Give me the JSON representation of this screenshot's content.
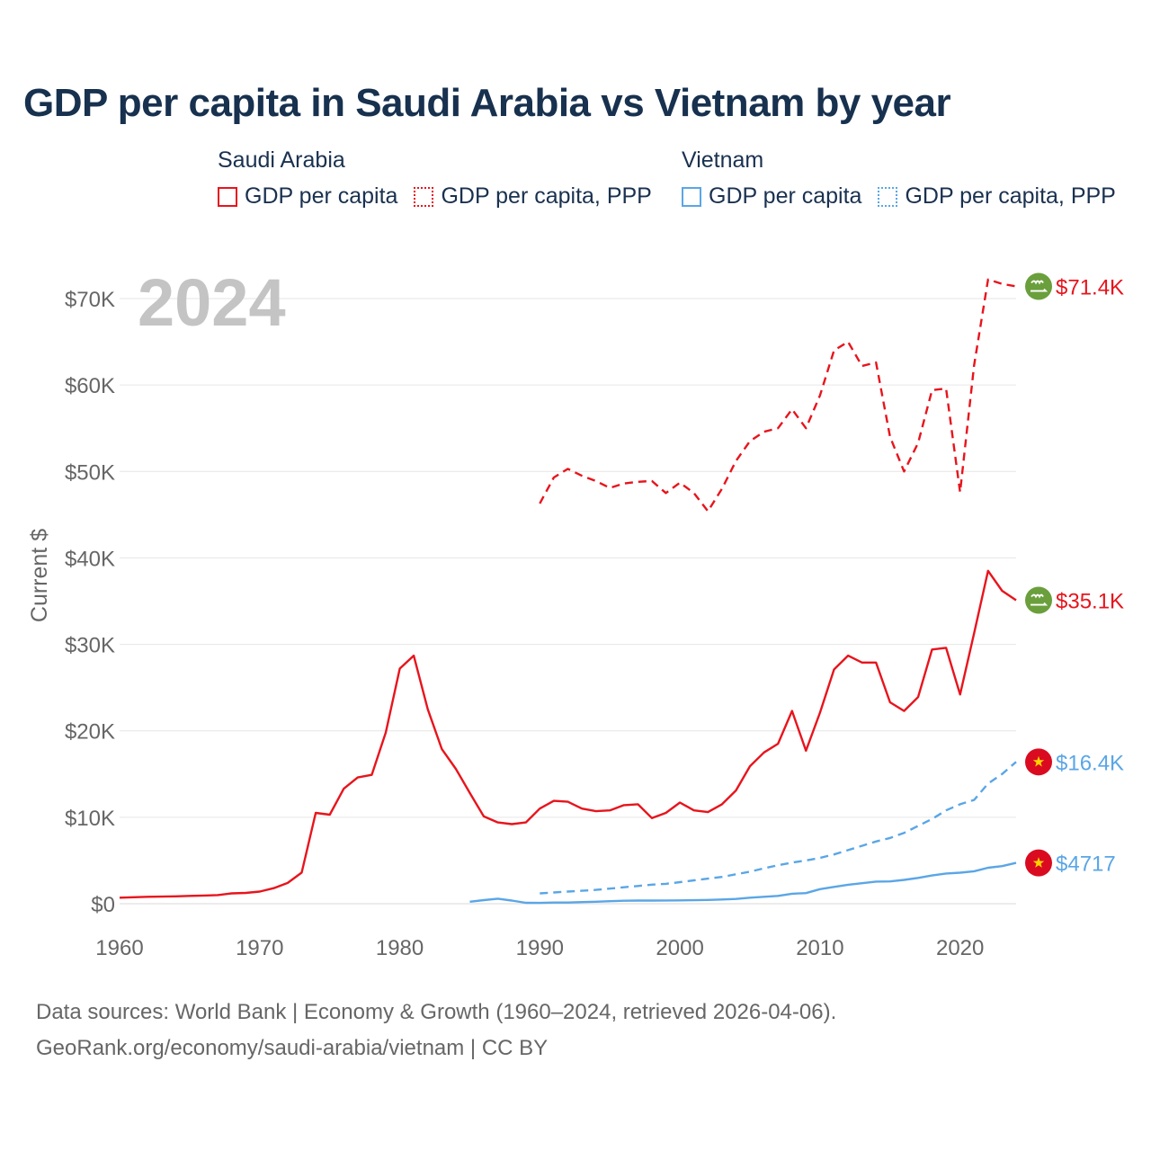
{
  "title": "GDP per capita in Saudi Arabia vs Vietnam by year",
  "legend": {
    "groups": [
      {
        "name": "Saudi Arabia",
        "items": [
          {
            "label": "GDP per capita",
            "style": "solid",
            "color": "#e8141c"
          },
          {
            "label": "GDP per capita, PPP",
            "style": "dotted",
            "color": "#e8141c"
          }
        ]
      },
      {
        "name": "Vietnam",
        "items": [
          {
            "label": "GDP per capita",
            "style": "solid",
            "color": "#5aa6e6"
          },
          {
            "label": "GDP per capita, PPP",
            "style": "dotted",
            "color": "#5aa6e6"
          }
        ]
      }
    ]
  },
  "year_label": "2024",
  "footer": {
    "line1": "Data sources: World Bank | Economy & Growth (1960–2024, retrieved 2026-04-06).",
    "line2": "GeoRank.org/economy/saudi-arabia/vietnam | CC BY"
  },
  "icons": {
    "saudi": "saudi-arabia-flag-icon",
    "vietnam": "vietnam-flag-icon"
  },
  "colors": {
    "saudi": "#e8141c",
    "vietnam": "#5aa6e6",
    "saudi_flag": "#6a9f3c",
    "vietnam_flag": "#da0b20",
    "vietnam_star": "#ffd400"
  },
  "chart_data": {
    "type": "line",
    "title": "GDP per capita in Saudi Arabia vs Vietnam by year",
    "xlabel": "",
    "ylabel": "Current $",
    "xlim": [
      1960,
      2024
    ],
    "ylim": [
      0,
      70000
    ],
    "x_ticks": [
      "1960",
      "1970",
      "1980",
      "1990",
      "2000",
      "2010",
      "2020"
    ],
    "y_ticks": [
      {
        "value": 0,
        "label": "$0"
      },
      {
        "value": 10000,
        "label": "$10K"
      },
      {
        "value": 20000,
        "label": "$20K"
      },
      {
        "value": 30000,
        "label": "$30K"
      },
      {
        "value": 40000,
        "label": "$40K"
      },
      {
        "value": 50000,
        "label": "$50K"
      },
      {
        "value": 60000,
        "label": "$60K"
      },
      {
        "value": 70000,
        "label": "$70K"
      }
    ],
    "series": [
      {
        "name": "Saudi Arabia GDP per capita, PPP",
        "style": "dashed",
        "color": "#e8141c",
        "end_label": "$71.4K",
        "flag": "saudi",
        "x": [
          1990,
          1991,
          1992,
          1993,
          1994,
          1995,
          1996,
          1997,
          1998,
          1999,
          2000,
          2001,
          2002,
          2003,
          2004,
          2005,
          2006,
          2007,
          2008,
          2009,
          2010,
          2011,
          2012,
          2013,
          2014,
          2015,
          2016,
          2017,
          2018,
          2019,
          2020,
          2021,
          2022,
          2023,
          2024
        ],
        "values": [
          46300,
          49300,
          50300,
          49500,
          48900,
          48100,
          48600,
          48800,
          48900,
          47500,
          48700,
          47500,
          45400,
          48000,
          51200,
          53500,
          54600,
          55000,
          57200,
          55000,
          58800,
          64000,
          65000,
          62200,
          62600,
          54000,
          50000,
          53300,
          59400,
          59600,
          47600,
          62300,
          72200,
          71700,
          71400
        ]
      },
      {
        "name": "Saudi Arabia GDP per capita",
        "style": "solid",
        "color": "#e8141c",
        "end_label": "$35.1K",
        "flag": "saudi",
        "x": [
          1960,
          1961,
          1962,
          1963,
          1964,
          1965,
          1966,
          1967,
          1968,
          1969,
          1970,
          1971,
          1972,
          1973,
          1974,
          1975,
          1976,
          1977,
          1978,
          1979,
          1980,
          1981,
          1982,
          1983,
          1984,
          1985,
          1986,
          1987,
          1988,
          1989,
          1990,
          1991,
          1992,
          1993,
          1994,
          1995,
          1996,
          1997,
          1998,
          1999,
          2000,
          2001,
          2002,
          2003,
          2004,
          2005,
          2006,
          2007,
          2008,
          2009,
          2010,
          2011,
          2012,
          2013,
          2014,
          2015,
          2016,
          2017,
          2018,
          2019,
          2020,
          2021,
          2022,
          2023,
          2024
        ],
        "values": [
          700,
          750,
          800,
          820,
          850,
          900,
          950,
          1000,
          1200,
          1250,
          1400,
          1800,
          2400,
          3600,
          10500,
          10300,
          13300,
          14600,
          14900,
          19800,
          27200,
          28700,
          22500,
          17900,
          15600,
          12800,
          10100,
          9400,
          9200,
          9400,
          11000,
          11900,
          11800,
          11000,
          10700,
          10800,
          11400,
          11500,
          9900,
          10500,
          11700,
          10800,
          10600,
          11500,
          13100,
          15900,
          17500,
          18500,
          22300,
          17700,
          22100,
          27100,
          28700,
          27900,
          27900,
          23300,
          22300,
          23900,
          29400,
          29600,
          24200,
          31300,
          38500,
          36200,
          35100
        ]
      },
      {
        "name": "Vietnam GDP per capita, PPP",
        "style": "dashed",
        "color": "#5aa6e6",
        "end_label": "$16.4K",
        "flag": "vietnam",
        "x": [
          1990,
          1991,
          1992,
          1993,
          1994,
          1995,
          1996,
          1997,
          1998,
          1999,
          2000,
          2001,
          2002,
          2003,
          2004,
          2005,
          2006,
          2007,
          2008,
          2009,
          2010,
          2011,
          2012,
          2013,
          2014,
          2015,
          2016,
          2017,
          2018,
          2019,
          2020,
          2021,
          2022,
          2023,
          2024
        ],
        "values": [
          1200,
          1300,
          1400,
          1500,
          1600,
          1750,
          1900,
          2050,
          2200,
          2300,
          2500,
          2700,
          2900,
          3100,
          3400,
          3700,
          4100,
          4450,
          4750,
          5000,
          5300,
          5700,
          6200,
          6700,
          7200,
          7600,
          8200,
          9000,
          9800,
          10800,
          11500,
          12000,
          13900,
          15000,
          16400
        ]
      },
      {
        "name": "Vietnam GDP per capita",
        "style": "solid",
        "color": "#5aa6e6",
        "end_label": "$4717",
        "flag": "vietnam",
        "x": [
          1985,
          1986,
          1987,
          1988,
          1989,
          1990,
          1991,
          1992,
          1993,
          1994,
          1995,
          1996,
          1997,
          1998,
          1999,
          2000,
          2001,
          2002,
          2003,
          2004,
          2005,
          2006,
          2007,
          2008,
          2009,
          2010,
          2011,
          2012,
          2013,
          2014,
          2015,
          2016,
          2017,
          2018,
          2019,
          2020,
          2021,
          2022,
          2023,
          2024
        ],
        "values": [
          230,
          420,
          580,
          360,
          100,
          95,
          140,
          140,
          185,
          230,
          290,
          340,
          360,
          360,
          370,
          390,
          410,
          440,
          490,
          550,
          700,
          800,
          910,
          1150,
          1230,
          1680,
          1950,
          2190,
          2370,
          2560,
          2580,
          2760,
          2990,
          3270,
          3490,
          3590,
          3760,
          4160,
          4350,
          4717
        ]
      }
    ]
  }
}
